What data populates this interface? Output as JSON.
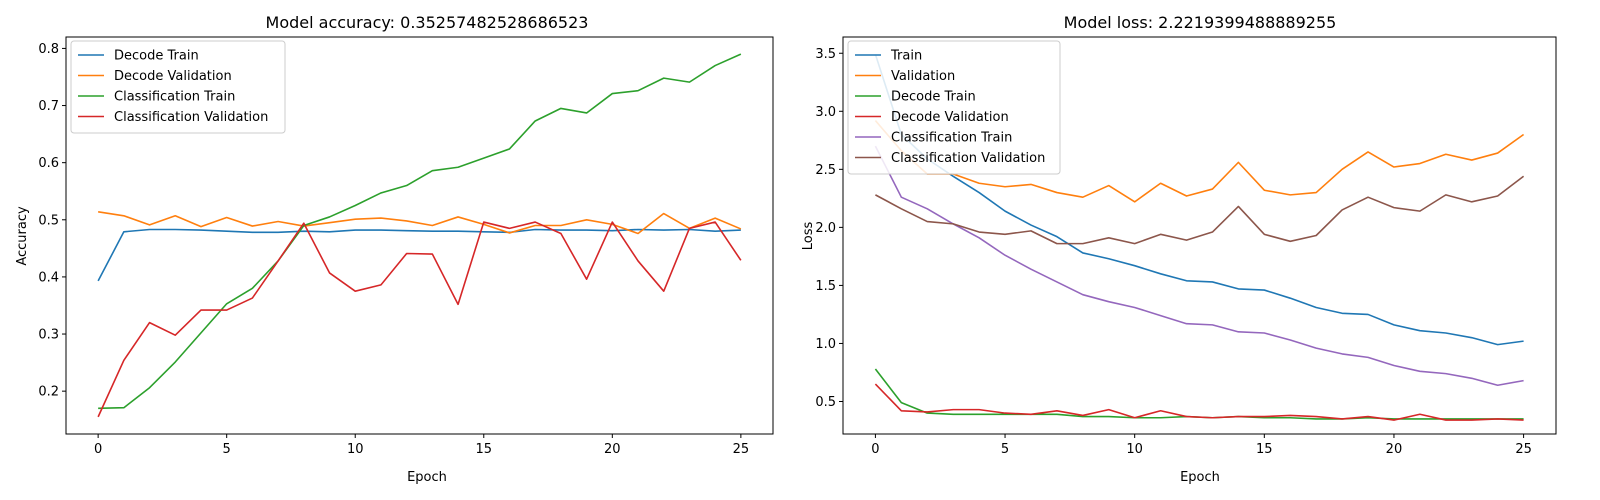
{
  "chart_data": [
    {
      "type": "line",
      "title": "Model accuracy: 0.35257482528686523",
      "xlabel": "Epoch",
      "ylabel": "Accuracy",
      "xlim": [
        -1.25,
        26.25
      ],
      "ylim": [
        0.125,
        0.82
      ],
      "xticks": [
        0,
        5,
        10,
        15,
        20,
        25
      ],
      "yticks": [
        0.2,
        0.3,
        0.4,
        0.5,
        0.6,
        0.7,
        0.8
      ],
      "grid": false,
      "legend": "upper-left",
      "x": [
        0,
        1,
        2,
        3,
        4,
        5,
        6,
        7,
        8,
        9,
        10,
        11,
        12,
        13,
        14,
        15,
        16,
        17,
        18,
        19,
        20,
        21,
        22,
        23,
        24,
        25
      ],
      "series": [
        {
          "name": "Decode Train",
          "color": "#1f77b4",
          "values": [
            0.393,
            0.479,
            0.483,
            0.483,
            0.482,
            0.48,
            0.478,
            0.478,
            0.48,
            0.479,
            0.482,
            0.482,
            0.481,
            0.48,
            0.48,
            0.479,
            0.478,
            0.483,
            0.482,
            0.482,
            0.481,
            0.483,
            0.482,
            0.483,
            0.48,
            0.482
          ]
        },
        {
          "name": "Decode Validation",
          "color": "#ff7f0e",
          "values": [
            0.514,
            0.507,
            0.491,
            0.507,
            0.488,
            0.504,
            0.489,
            0.497,
            0.489,
            0.495,
            0.501,
            0.503,
            0.498,
            0.49,
            0.505,
            0.492,
            0.477,
            0.49,
            0.49,
            0.5,
            0.492,
            0.476,
            0.511,
            0.485,
            0.503,
            0.484
          ]
        },
        {
          "name": "Classification Train",
          "color": "#2ca02c",
          "values": [
            0.17,
            0.171,
            0.206,
            0.251,
            0.302,
            0.353,
            0.38,
            0.428,
            0.49,
            0.505,
            0.525,
            0.547,
            0.56,
            0.586,
            0.592,
            0.608,
            0.624,
            0.673,
            0.695,
            0.687,
            0.721,
            0.726,
            0.748,
            0.741,
            0.77,
            0.79
          ]
        },
        {
          "name": "Classification Validation",
          "color": "#d62728",
          "values": [
            0.155,
            0.254,
            0.32,
            0.298,
            0.342,
            0.342,
            0.363,
            0.428,
            0.494,
            0.407,
            0.375,
            0.386,
            0.441,
            0.44,
            0.352,
            0.496,
            0.485,
            0.496,
            0.476,
            0.396,
            0.496,
            0.428,
            0.375,
            0.485,
            0.496,
            0.429
          ]
        }
      ]
    },
    {
      "type": "line",
      "title": "Model loss: 2.2219399488889255",
      "xlabel": "Epoch",
      "ylabel": "Loss",
      "xlim": [
        -1.25,
        26.25
      ],
      "ylim": [
        0.22,
        3.64
      ],
      "xticks": [
        0,
        5,
        10,
        15,
        20,
        25
      ],
      "yticks": [
        0.5,
        1.0,
        1.5,
        2.0,
        2.5,
        3.0,
        3.5
      ],
      "grid": false,
      "legend": "upper-left",
      "x": [
        0,
        1,
        2,
        3,
        4,
        5,
        6,
        7,
        8,
        9,
        10,
        11,
        12,
        13,
        14,
        15,
        16,
        17,
        18,
        19,
        20,
        21,
        22,
        23,
        24,
        25
      ],
      "series": [
        {
          "name": "Train",
          "color": "#1f77b4",
          "values": [
            3.49,
            2.8,
            2.59,
            2.44,
            2.3,
            2.14,
            2.02,
            1.92,
            1.78,
            1.73,
            1.67,
            1.6,
            1.54,
            1.53,
            1.47,
            1.46,
            1.39,
            1.31,
            1.26,
            1.25,
            1.16,
            1.11,
            1.09,
            1.05,
            0.99,
            1.02
          ]
        },
        {
          "name": "Validation",
          "color": "#ff7f0e",
          "values": [
            2.92,
            2.66,
            2.46,
            2.46,
            2.38,
            2.35,
            2.37,
            2.3,
            2.26,
            2.36,
            2.22,
            2.38,
            2.27,
            2.33,
            2.56,
            2.32,
            2.28,
            2.3,
            2.5,
            2.65,
            2.52,
            2.55,
            2.63,
            2.58,
            2.64,
            2.8
          ]
        },
        {
          "name": "Decode Train",
          "color": "#2ca02c",
          "values": [
            0.78,
            0.49,
            0.4,
            0.39,
            0.39,
            0.39,
            0.39,
            0.39,
            0.37,
            0.37,
            0.36,
            0.36,
            0.37,
            0.36,
            0.37,
            0.36,
            0.36,
            0.35,
            0.35,
            0.36,
            0.35,
            0.35,
            0.35,
            0.35,
            0.35,
            0.35
          ]
        },
        {
          "name": "Decode Validation",
          "color": "#d62728",
          "values": [
            0.65,
            0.42,
            0.41,
            0.43,
            0.43,
            0.4,
            0.39,
            0.42,
            0.38,
            0.43,
            0.36,
            0.42,
            0.37,
            0.36,
            0.37,
            0.37,
            0.38,
            0.37,
            0.35,
            0.37,
            0.34,
            0.39,
            0.34,
            0.34,
            0.35,
            0.34
          ]
        },
        {
          "name": "Classification Train",
          "color": "#9467bd",
          "values": [
            2.7,
            2.26,
            2.16,
            2.03,
            1.91,
            1.76,
            1.64,
            1.53,
            1.42,
            1.36,
            1.31,
            1.24,
            1.17,
            1.16,
            1.1,
            1.09,
            1.03,
            0.96,
            0.91,
            0.88,
            0.81,
            0.76,
            0.74,
            0.7,
            0.64,
            0.68
          ]
        },
        {
          "name": "Classification Validation",
          "color": "#8c564b",
          "values": [
            2.28,
            2.16,
            2.05,
            2.03,
            1.96,
            1.94,
            1.97,
            1.86,
            1.86,
            1.91,
            1.86,
            1.94,
            1.89,
            1.96,
            2.18,
            1.94,
            1.88,
            1.93,
            2.15,
            2.26,
            2.17,
            2.14,
            2.28,
            2.22,
            2.27,
            2.44
          ]
        }
      ]
    }
  ]
}
